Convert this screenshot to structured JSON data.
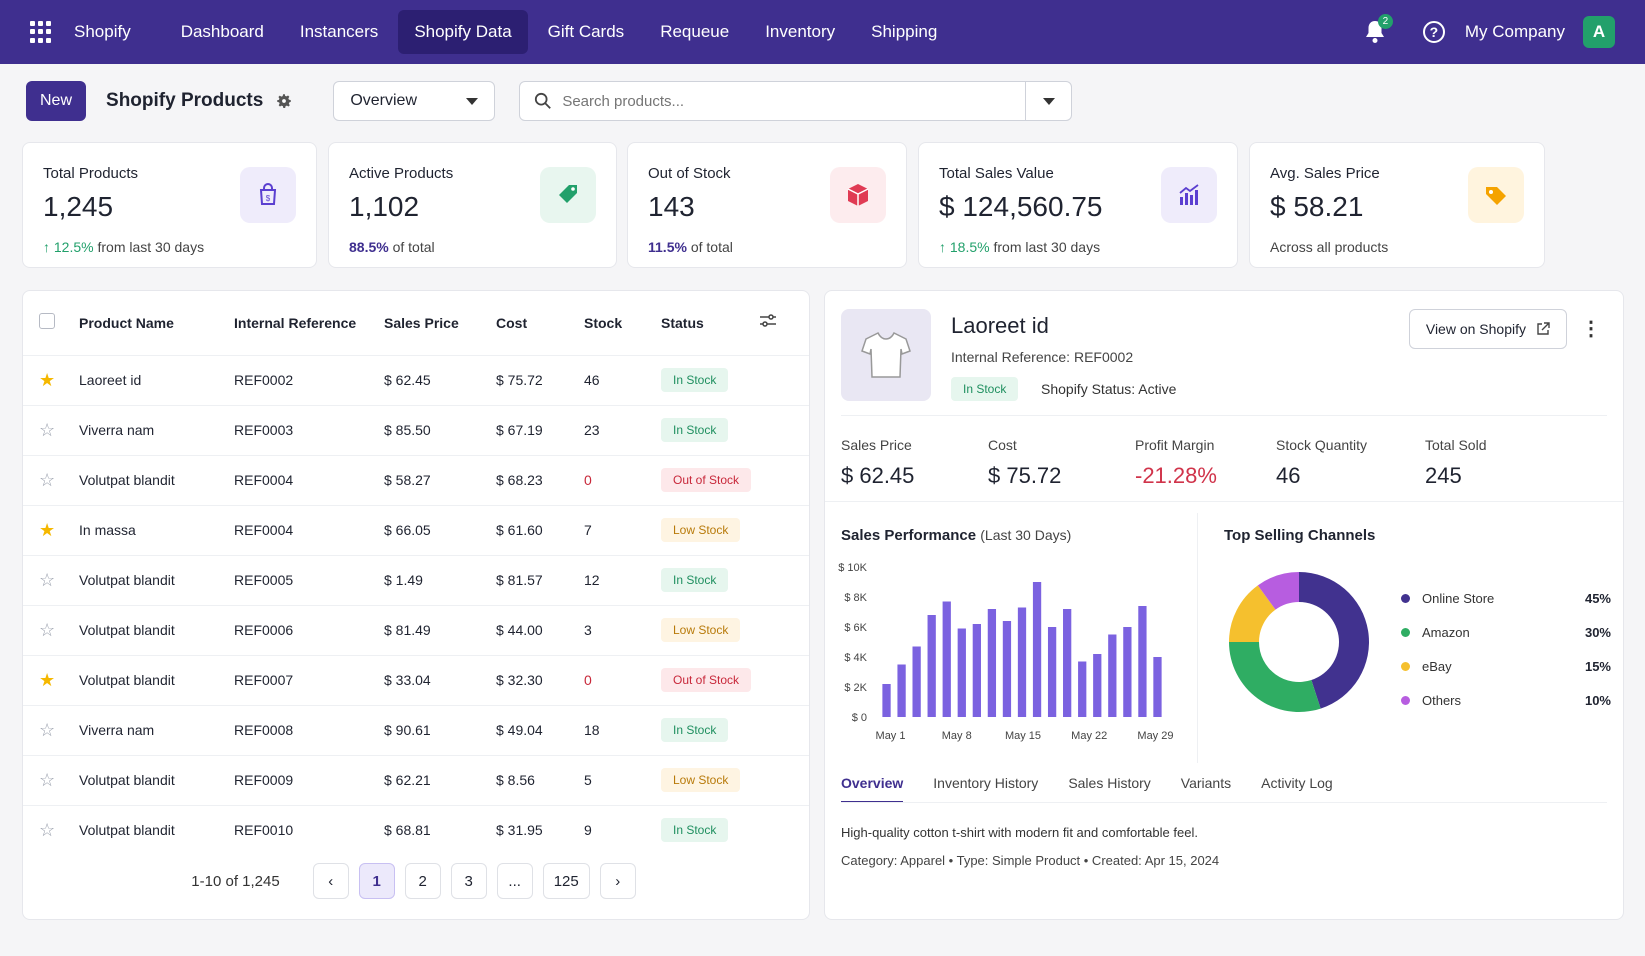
{
  "nav": {
    "brand": "Shopify",
    "items": [
      {
        "label": "Dashboard"
      },
      {
        "label": "Instancers"
      },
      {
        "label": "Shopify Data",
        "active": true
      },
      {
        "label": "Gift Cards"
      },
      {
        "label": "Requeue"
      },
      {
        "label": "Inventory"
      },
      {
        "label": "Shipping"
      }
    ],
    "notifications": "2",
    "company": "My Company",
    "avatar_initial": "A"
  },
  "toolbar": {
    "new_label": "New",
    "title": "Shopify Products",
    "view_select": "Overview",
    "search_placeholder": "Search products..."
  },
  "stats": [
    {
      "label": "Total Products",
      "value": "1,245",
      "sub_hl": "12.5%",
      "sub_rest": "from last 30 days",
      "trend_up": true,
      "icon": "shopping-bag-icon",
      "color": "#5b3fd0"
    },
    {
      "label": "Active Products",
      "value": "1,102",
      "sub_hl": "88.5%",
      "sub_rest": "of total",
      "icon": "tag-icon",
      "color": "#22a06b"
    },
    {
      "label": "Out of Stock",
      "value": "143",
      "sub_hl": "11.5%",
      "sub_rest": "of total",
      "icon": "box-icon",
      "color": "#e03b54"
    },
    {
      "label": "Total Sales Value",
      "value": "$ 124,560.75",
      "sub_hl": "18.5%",
      "sub_rest": "from last 30 days",
      "trend_up": true,
      "icon": "chart-up-icon",
      "color": "#5b3fd0"
    },
    {
      "label": "Avg. Sales Price",
      "value": "$ 58.21",
      "sub_hl": "",
      "sub_rest": "Across all products",
      "icon": "price-tag-icon",
      "color": "#f5a300"
    }
  ],
  "table": {
    "headers": [
      "Product Name",
      "Internal Reference",
      "Sales Price",
      "Cost",
      "Stock",
      "Status"
    ],
    "rows": [
      {
        "fav": true,
        "name": "Laoreet id",
        "ref": "REF0002",
        "price": "$ 62.45",
        "cost": "$ 75.72",
        "stock": "46",
        "status": "In Stock"
      },
      {
        "fav": false,
        "name": "Viverra nam",
        "ref": "REF0003",
        "price": "$ 85.50",
        "cost": "$ 67.19",
        "stock": "23",
        "status": "In Stock"
      },
      {
        "fav": false,
        "name": "Volutpat blandit",
        "ref": "REF0004",
        "price": "$ 58.27",
        "cost": "$ 68.23",
        "stock": "0",
        "status": "Out of Stock"
      },
      {
        "fav": true,
        "name": "In massa",
        "ref": "REF0004",
        "price": "$ 66.05",
        "cost": "$ 61.60",
        "stock": "7",
        "status": "Low Stock"
      },
      {
        "fav": false,
        "name": "Volutpat blandit",
        "ref": "REF0005",
        "price": "$ 1.49",
        "cost": "$ 81.57",
        "stock": "12",
        "status": "In Stock"
      },
      {
        "fav": false,
        "name": "Volutpat blandit",
        "ref": "REF0006",
        "price": "$ 81.49",
        "cost": "$ 44.00",
        "stock": "3",
        "status": "Low Stock"
      },
      {
        "fav": true,
        "name": "Volutpat blandit",
        "ref": "REF0007",
        "price": "$ 33.04",
        "cost": "$ 32.30",
        "stock": "0",
        "status": "Out of Stock"
      },
      {
        "fav": false,
        "name": "Viverra nam",
        "ref": "REF0008",
        "price": "$ 90.61",
        "cost": "$ 49.04",
        "stock": "18",
        "status": "In Stock"
      },
      {
        "fav": false,
        "name": "Volutpat blandit",
        "ref": "REF0009",
        "price": "$ 62.21",
        "cost": "$ 8.56",
        "stock": "5",
        "status": "Low Stock"
      },
      {
        "fav": false,
        "name": "Volutpat blandit",
        "ref": "REF0010",
        "price": "$ 68.81",
        "cost": "$ 31.95",
        "stock": "9",
        "status": "In Stock"
      }
    ],
    "pagination": {
      "range": "1-10 of 1,245",
      "pages": [
        "1",
        "2",
        "3",
        "...",
        "125"
      ],
      "current": "1"
    }
  },
  "detail": {
    "name": "Laoreet id",
    "ref_label": "Internal Reference: REF0002",
    "badge": "In Stock",
    "shopify_status": "Shopify Status: Active",
    "view_button": "View on Shopify",
    "metrics": [
      {
        "label": "Sales Price",
        "value": "$ 62.45"
      },
      {
        "label": "Cost",
        "value": "$ 75.72"
      },
      {
        "label": "Profit Margin",
        "value": "-21.28%",
        "negative": true
      },
      {
        "label": "Stock Quantity",
        "value": "46"
      },
      {
        "label": "Total Sold",
        "value": "245"
      }
    ],
    "perf_title": "Sales Performance",
    "perf_sub": "(Last 30 Days)",
    "channels_title": "Top Selling Channels",
    "tabs": [
      "Overview",
      "Inventory History",
      "Sales History",
      "Variants",
      "Activity Log"
    ],
    "description": "High-quality cotton t-shirt with modern fit and comfortable feel.",
    "meta": "Category: Apparel  •  Type: Simple Product  •  Created: Apr 15, 2024"
  },
  "chart_data": [
    {
      "type": "bar",
      "title": "Sales Performance",
      "subtitle": "(Last 30 Days)",
      "ytick_labels": [
        "$ 0",
        "$ 2K",
        "$ 4K",
        "$ 6K",
        "$ 8K",
        "$ 10K"
      ],
      "xtick_labels": [
        "May 1",
        "May 8",
        "May 15",
        "May 22",
        "May 29"
      ],
      "ylim": [
        0,
        10000
      ],
      "color": "#7b62e0",
      "values": [
        2200,
        3500,
        4700,
        6800,
        7700,
        5900,
        6200,
        7200,
        6400,
        7300,
        9000,
        6000,
        7200,
        3700,
        4200,
        5500,
        6000,
        7400,
        4000
      ]
    },
    {
      "type": "pie",
      "title": "Top Selling Channels",
      "slices": [
        {
          "label": "Online Store",
          "value": 45,
          "pct": "45%",
          "color": "#41328f"
        },
        {
          "label": "Amazon",
          "value": 30,
          "pct": "30%",
          "color": "#2fad63"
        },
        {
          "label": "eBay",
          "value": 15,
          "pct": "15%",
          "color": "#f5c02e"
        },
        {
          "label": "Others",
          "value": 10,
          "pct": "10%",
          "color": "#b75de0"
        }
      ]
    }
  ]
}
